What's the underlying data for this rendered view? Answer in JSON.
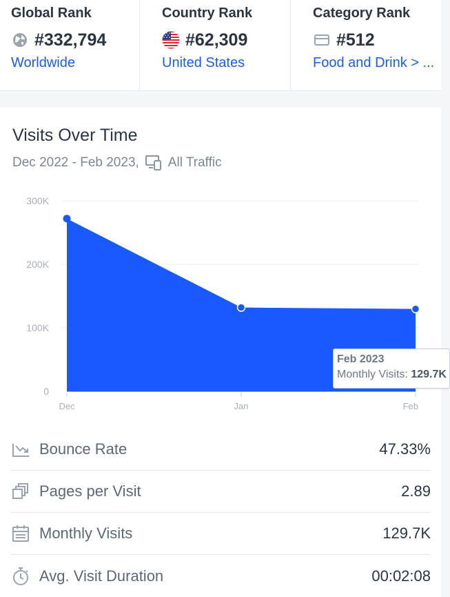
{
  "ranks": [
    {
      "title": "Global Rank",
      "value": "#332,794",
      "link": "Worldwide",
      "icon": "globe-icon"
    },
    {
      "title": "Country Rank",
      "value": "#62,309",
      "link": "United States",
      "icon": "us-flag-icon"
    },
    {
      "title": "Category Rank",
      "value": "#512",
      "link": "Food and Drink > ...",
      "icon": "category-icon"
    }
  ],
  "visits": {
    "title": "Visits Over Time",
    "date_range": "Dec 2022 - Feb 2023,",
    "traffic": "All Traffic",
    "tooltip": {
      "date": "Feb 2023",
      "label": "Monthly Visits:",
      "value": "129.7K"
    }
  },
  "chart_data": {
    "type": "area",
    "categories": [
      "Dec",
      "Jan",
      "Feb"
    ],
    "values": [
      272000,
      132000,
      129700
    ],
    "ylim": [
      0,
      300000
    ],
    "yticks": [
      {
        "value": 0,
        "label": "0"
      },
      {
        "value": 100000,
        "label": "100K"
      },
      {
        "value": 200000,
        "label": "200K"
      },
      {
        "value": 300000,
        "label": "300K"
      }
    ],
    "grid": true,
    "color": "#195afe"
  },
  "metrics": [
    {
      "label": "Bounce Rate",
      "value": "47.33%",
      "icon": "bounce-icon"
    },
    {
      "label": "Pages per Visit",
      "value": "2.89",
      "icon": "pages-icon"
    },
    {
      "label": "Monthly Visits",
      "value": "129.7K",
      "icon": "calendar-icon"
    },
    {
      "label": "Avg. Visit Duration",
      "value": "00:02:08",
      "icon": "stopwatch-icon"
    }
  ],
  "colors": {
    "accent": "#195afe",
    "text": "#2a3543",
    "muted": "#7a8696"
  }
}
